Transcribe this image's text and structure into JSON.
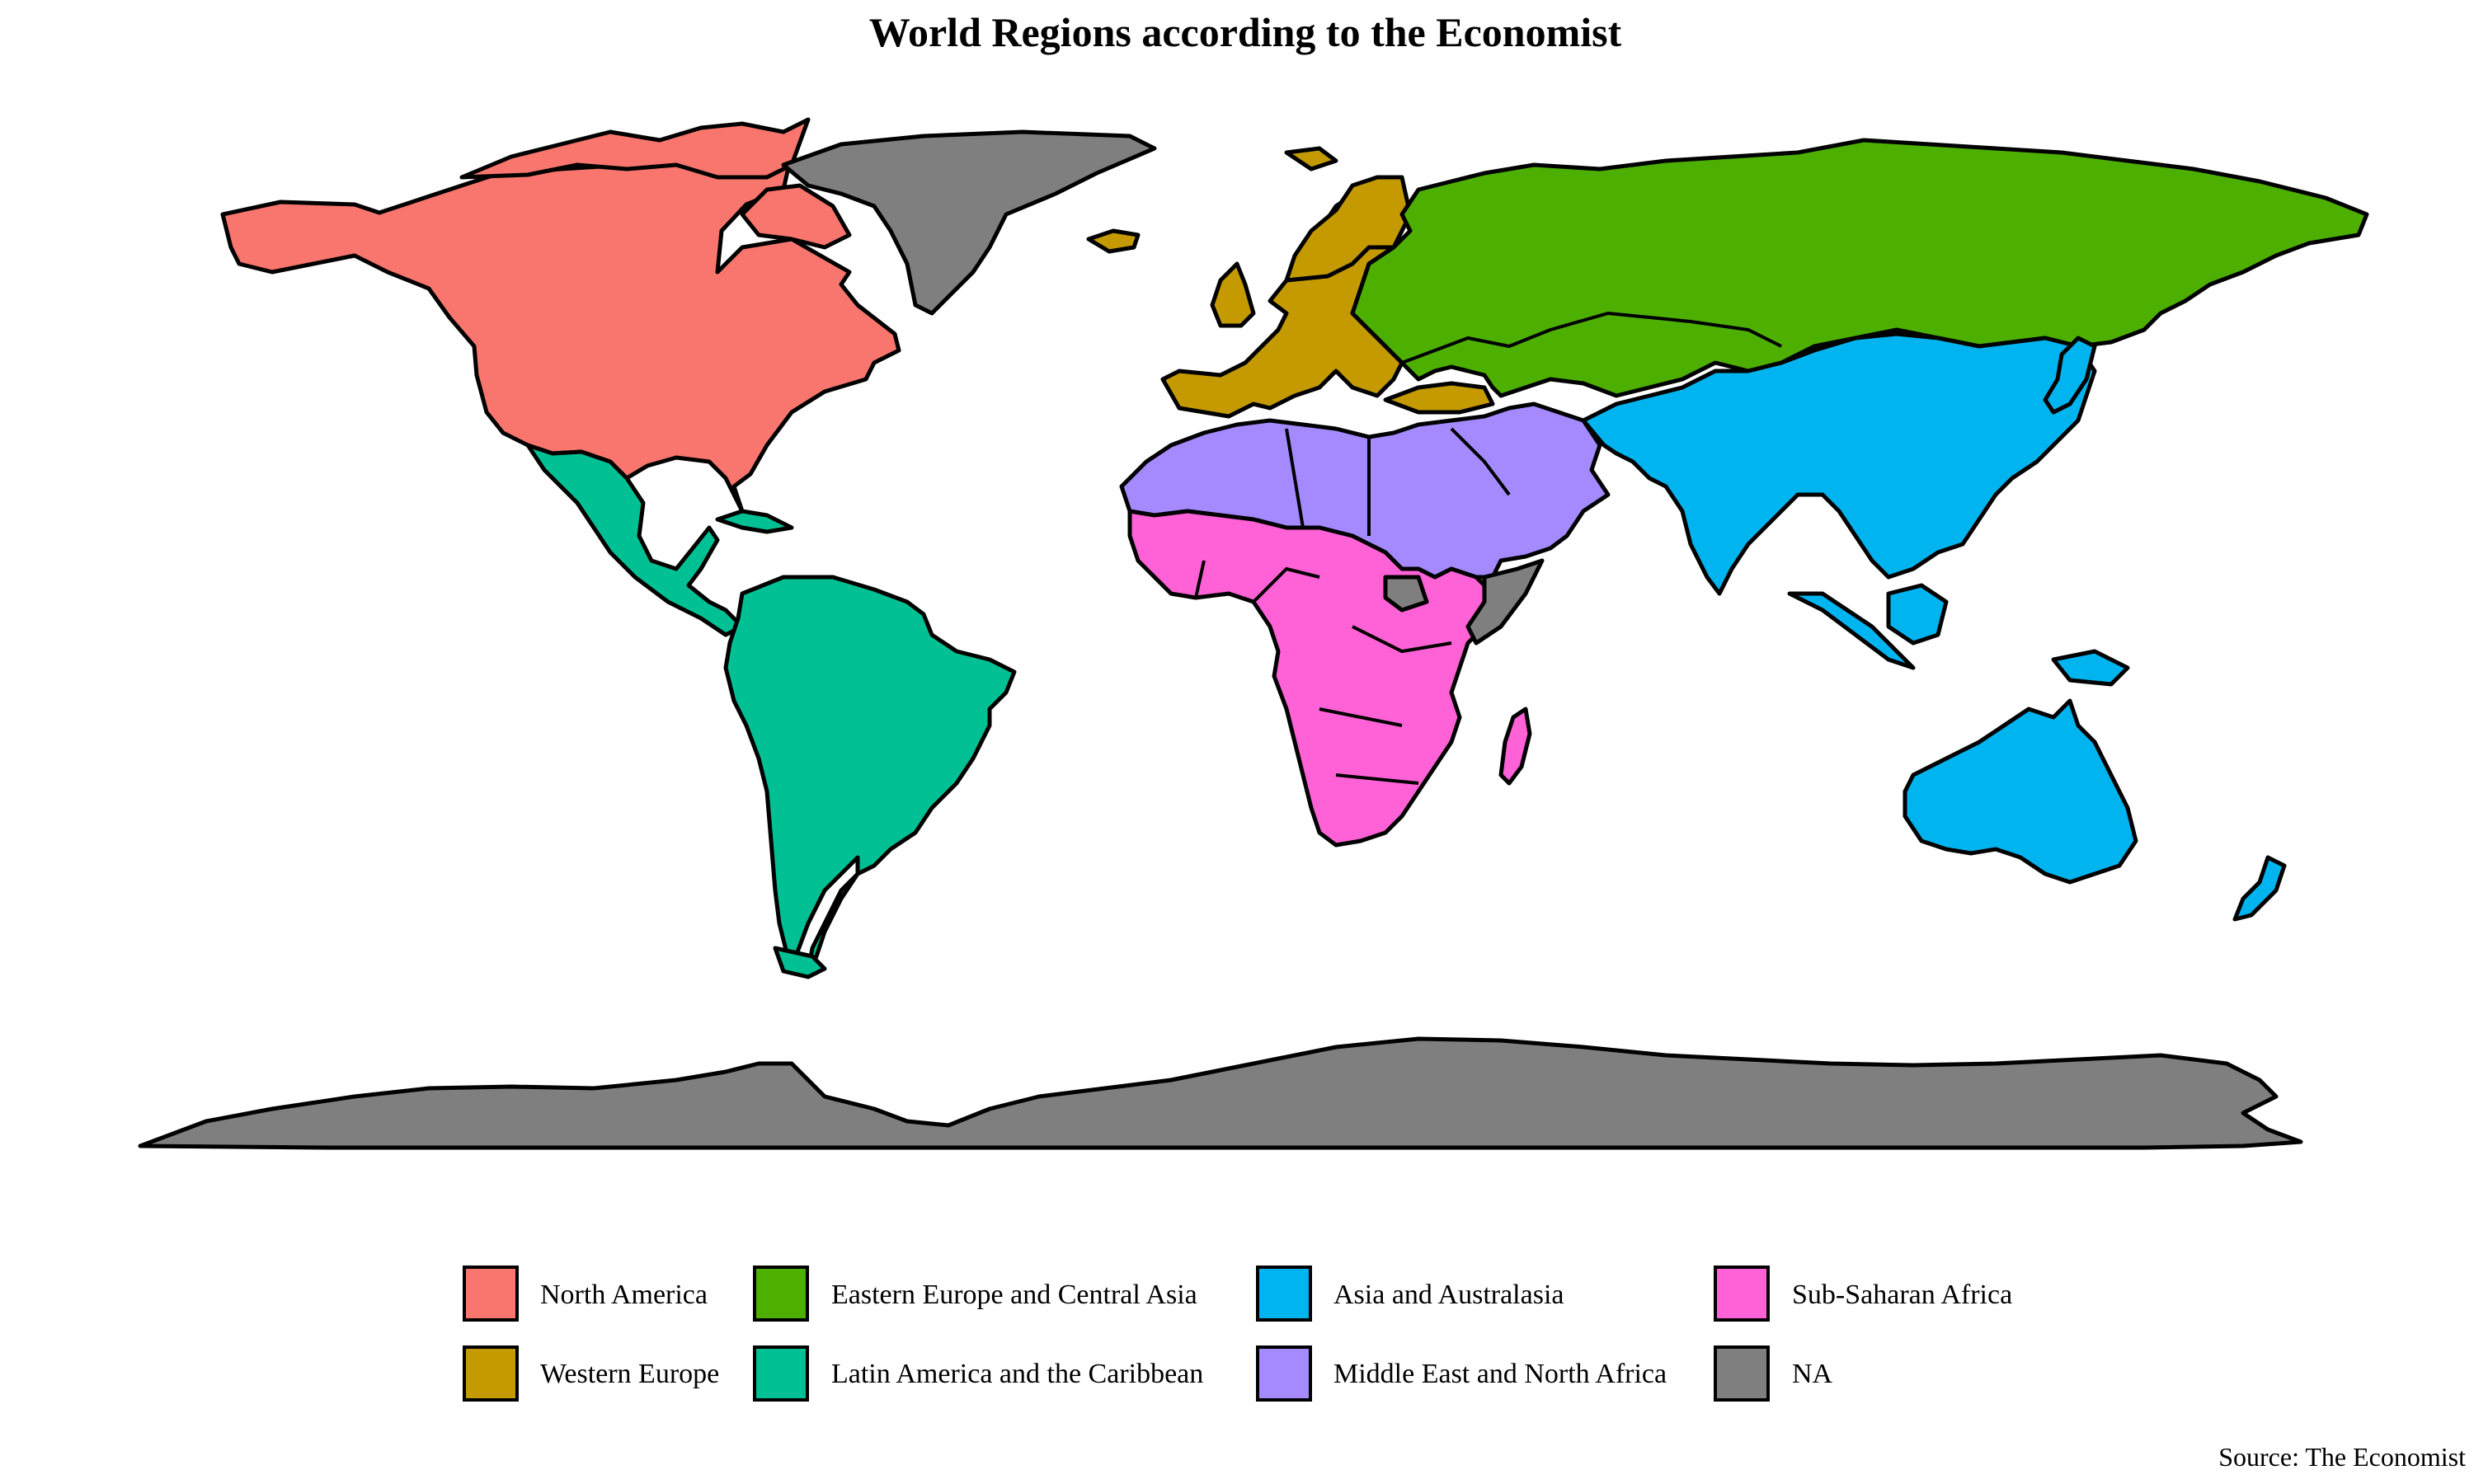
{
  "title": "World Regions according to the Economist",
  "source": "Source: The Economist",
  "regions": [
    {
      "id": "north-america",
      "label": "North America",
      "color": "#F8766D"
    },
    {
      "id": "eastern-europe-central-asia",
      "label": "Eastern Europe and Central Asia",
      "color": "#4DAF00"
    },
    {
      "id": "asia-australasia",
      "label": "Asia and Australasia",
      "color": "#00B4EF"
    },
    {
      "id": "sub-saharan-africa",
      "label": "Sub-Saharan Africa",
      "color": "#FF61D6"
    },
    {
      "id": "western-europe",
      "label": "Western Europe",
      "color": "#C49A00"
    },
    {
      "id": "latin-america-caribbean",
      "label": "Latin America and the Caribbean",
      "color": "#00C094"
    },
    {
      "id": "middle-east-north-africa",
      "label": "Middle East and North Africa",
      "color": "#A58AFF"
    },
    {
      "id": "na",
      "label": "NA",
      "color": "#7F7F7F"
    }
  ]
}
